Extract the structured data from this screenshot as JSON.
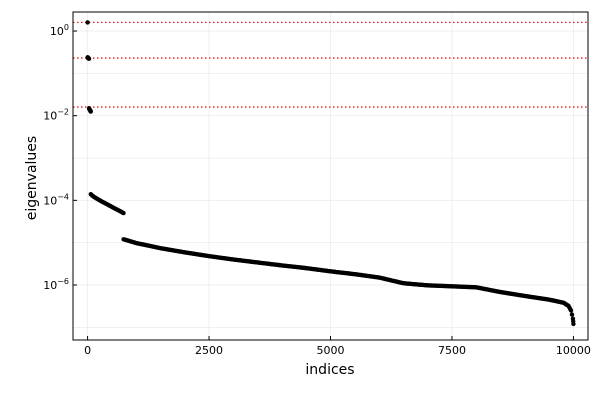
{
  "chart_data": {
    "type": "scatter",
    "title": "",
    "xlabel": "indices",
    "ylabel": "eigenvalues",
    "xlim": [
      -300,
      10300
    ],
    "ylim_log10": [
      -7.3,
      0.45
    ],
    "yscale": "log",
    "grid": true,
    "legend": "none",
    "x_ticks": [
      {
        "value": 0,
        "label": "0"
      },
      {
        "value": 2500,
        "label": "2500"
      },
      {
        "value": 5000,
        "label": "5000"
      },
      {
        "value": 7500,
        "label": "7500"
      },
      {
        "value": 10000,
        "label": "10000"
      }
    ],
    "y_ticks": [
      {
        "value": 1,
        "base": "10",
        "exp": "0"
      },
      {
        "value": 0.01,
        "base": "10",
        "exp": "−2"
      },
      {
        "value": 0.0001,
        "base": "10",
        "exp": "−4"
      },
      {
        "value": 1e-06,
        "base": "10",
        "exp": "−6"
      }
    ],
    "reference_lines": [
      {
        "y": 1.6,
        "color": "#e41a1c",
        "style": "dotted"
      },
      {
        "y": 0.23,
        "color": "#e41a1c",
        "style": "dotted"
      },
      {
        "y": 0.016,
        "color": "#e41a1c",
        "style": "dotted"
      }
    ],
    "series": [
      {
        "color": "#000000",
        "points": [
          [
            1,
            1.6
          ],
          [
            2,
            0.24
          ],
          [
            5,
            0.235
          ],
          [
            10,
            0.23
          ],
          [
            20,
            0.225
          ],
          [
            30,
            0.222
          ],
          [
            31,
            0.015
          ],
          [
            40,
            0.014
          ],
          [
            50,
            0.0135
          ],
          [
            60,
            0.013
          ],
          [
            65,
            0.0125
          ],
          [
            66,
            0.00014
          ],
          [
            100,
            0.000128
          ],
          [
            200,
            0.000108
          ],
          [
            300,
            9.3e-05
          ],
          [
            400,
            8.1e-05
          ],
          [
            500,
            7e-05
          ],
          [
            600,
            6.1e-05
          ],
          [
            700,
            5.3e-05
          ],
          [
            740,
            5e-05
          ],
          [
            741,
            1.2e-05
          ],
          [
            800,
            1.15e-05
          ],
          [
            1000,
            9.8e-06
          ],
          [
            1500,
            7.4e-06
          ],
          [
            2000,
            5.9e-06
          ],
          [
            2500,
            4.8e-06
          ],
          [
            3000,
            4e-06
          ],
          [
            3500,
            3.4e-06
          ],
          [
            4000,
            2.9e-06
          ],
          [
            4500,
            2.5e-06
          ],
          [
            5000,
            2.1e-06
          ],
          [
            5500,
            1.8e-06
          ],
          [
            6000,
            1.5e-06
          ],
          [
            6500,
            1.1e-06
          ],
          [
            7000,
            9.8e-07
          ],
          [
            7500,
            9.3e-07
          ],
          [
            8000,
            8.8e-07
          ],
          [
            8500,
            6.8e-07
          ],
          [
            9000,
            5.5e-07
          ],
          [
            9500,
            4.5e-07
          ],
          [
            9800,
            3.8e-07
          ],
          [
            9900,
            3.2e-07
          ],
          [
            9950,
            2.5e-07
          ],
          [
            9990,
            1.6e-07
          ],
          [
            10000,
            1.2e-07
          ]
        ]
      }
    ]
  }
}
